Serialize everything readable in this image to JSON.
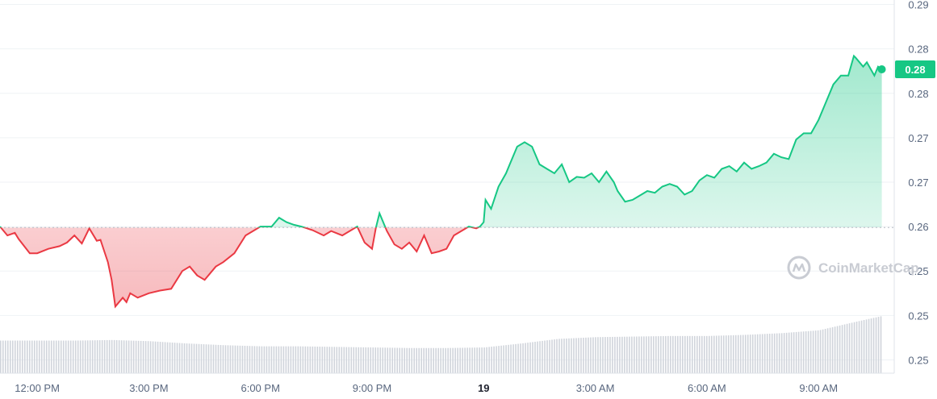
{
  "watermark": {
    "text": "CoinMarketCap",
    "icon": "coinmarketcap-logo-icon"
  },
  "current_price_label": "0.28",
  "colors": {
    "up": "#16c784",
    "down": "#ea3943",
    "baseline": "#b8bcc5",
    "volume": "#d0d4db",
    "grid": "#eff2f5",
    "axis_text": "#58667e"
  },
  "chart_data": {
    "type": "area",
    "title": "",
    "xlabel": "",
    "ylabel": "",
    "grid": true,
    "x_tick_labels": [
      "12:00 PM",
      "3:00 PM",
      "6:00 PM",
      "9:00 PM",
      "19",
      "3:00 AM",
      "6:00 AM",
      "9:00 AM"
    ],
    "x_tick_hours": [
      1,
      4,
      7,
      10,
      13,
      16,
      19,
      22
    ],
    "x_range_hours": [
      0,
      24
    ],
    "y_tick_labels": [
      "0.29",
      "0.28",
      "0.28",
      "0.27",
      "0.27",
      "0.26",
      "0.25",
      "0.25",
      "0.25"
    ],
    "y_tick_values": [
      0.29,
      0.285,
      0.28,
      0.275,
      0.27,
      0.265,
      0.26,
      0.255,
      0.25
    ],
    "ylim": [
      0.2485,
      0.2905
    ],
    "baseline": 0.2649,
    "price_series": {
      "x_hours": [
        0,
        0.2,
        0.4,
        0.5,
        0.8,
        1.0,
        1.3,
        1.6,
        1.8,
        2.0,
        2.2,
        2.4,
        2.6,
        2.7,
        2.9,
        3.0,
        3.1,
        3.3,
        3.4,
        3.5,
        3.7,
        4.0,
        4.3,
        4.6,
        4.9,
        5.1,
        5.3,
        5.5,
        5.8,
        6.0,
        6.3,
        6.6,
        6.8,
        7.0,
        7.3,
        7.5,
        7.7,
        7.9,
        8.1,
        8.4,
        8.7,
        8.9,
        9.2,
        9.4,
        9.6,
        9.8,
        10.0,
        10.1,
        10.2,
        10.4,
        10.6,
        10.8,
        11.0,
        11.2,
        11.4,
        11.6,
        11.8,
        12.0,
        12.2,
        12.4,
        12.6,
        12.8,
        12.9,
        13.0,
        13.05,
        13.2,
        13.4,
        13.6,
        13.7,
        13.8,
        13.9,
        14.1,
        14.3,
        14.5,
        14.7,
        14.9,
        15.1,
        15.3,
        15.5,
        15.7,
        15.9,
        16.1,
        16.3,
        16.5,
        16.6,
        16.8,
        17.0,
        17.2,
        17.4,
        17.6,
        17.8,
        18.0,
        18.2,
        18.4,
        18.6,
        18.8,
        19.0,
        19.2,
        19.4,
        19.6,
        19.8,
        20.0,
        20.2,
        20.4,
        20.6,
        20.8,
        21.0,
        21.2,
        21.4,
        21.6,
        21.8,
        22.0,
        22.2,
        22.4,
        22.6,
        22.8,
        22.95,
        23.0,
        23.2,
        23.3,
        23.5,
        23.6,
        23.7
      ],
      "y": [
        0.265,
        0.264,
        0.2643,
        0.2636,
        0.262,
        0.262,
        0.2625,
        0.2628,
        0.2632,
        0.264,
        0.2631,
        0.2648,
        0.2634,
        0.2635,
        0.261,
        0.259,
        0.256,
        0.257,
        0.2565,
        0.2575,
        0.257,
        0.2575,
        0.2578,
        0.258,
        0.26,
        0.2605,
        0.2595,
        0.259,
        0.2605,
        0.261,
        0.262,
        0.264,
        0.2645,
        0.265,
        0.265,
        0.266,
        0.2655,
        0.2652,
        0.265,
        0.2646,
        0.264,
        0.2645,
        0.264,
        0.2645,
        0.265,
        0.2632,
        0.2625,
        0.2648,
        0.2665,
        0.2645,
        0.263,
        0.2625,
        0.2632,
        0.2622,
        0.264,
        0.262,
        0.2622,
        0.2625,
        0.264,
        0.2645,
        0.265,
        0.2648,
        0.265,
        0.2655,
        0.268,
        0.267,
        0.2695,
        0.271,
        0.272,
        0.273,
        0.274,
        0.2745,
        0.274,
        0.272,
        0.2715,
        0.271,
        0.272,
        0.27,
        0.2706,
        0.2705,
        0.271,
        0.27,
        0.2712,
        0.27,
        0.269,
        0.2678,
        0.268,
        0.2685,
        0.269,
        0.2688,
        0.2695,
        0.2698,
        0.2695,
        0.2686,
        0.269,
        0.2702,
        0.2708,
        0.2705,
        0.2715,
        0.2718,
        0.2712,
        0.2722,
        0.2715,
        0.2718,
        0.2722,
        0.2732,
        0.2728,
        0.2726,
        0.2748,
        0.2755,
        0.2755,
        0.277,
        0.279,
        0.281,
        0.282,
        0.282,
        0.2842,
        0.284,
        0.283,
        0.2835,
        0.282,
        0.283,
        0.2827
      ]
    },
    "volume_series": {
      "x_hours": [
        0,
        1,
        2,
        3,
        4,
        5,
        6,
        7,
        8,
        9,
        10,
        11,
        12,
        13,
        14,
        15,
        16,
        17,
        18,
        19,
        20,
        21,
        22,
        23,
        23.7
      ],
      "relative_height": [
        0.57,
        0.57,
        0.57,
        0.58,
        0.56,
        0.52,
        0.49,
        0.47,
        0.47,
        0.46,
        0.45,
        0.44,
        0.44,
        0.45,
        0.52,
        0.6,
        0.63,
        0.64,
        0.65,
        0.65,
        0.67,
        0.7,
        0.75,
        0.9,
        1.0
      ]
    }
  }
}
